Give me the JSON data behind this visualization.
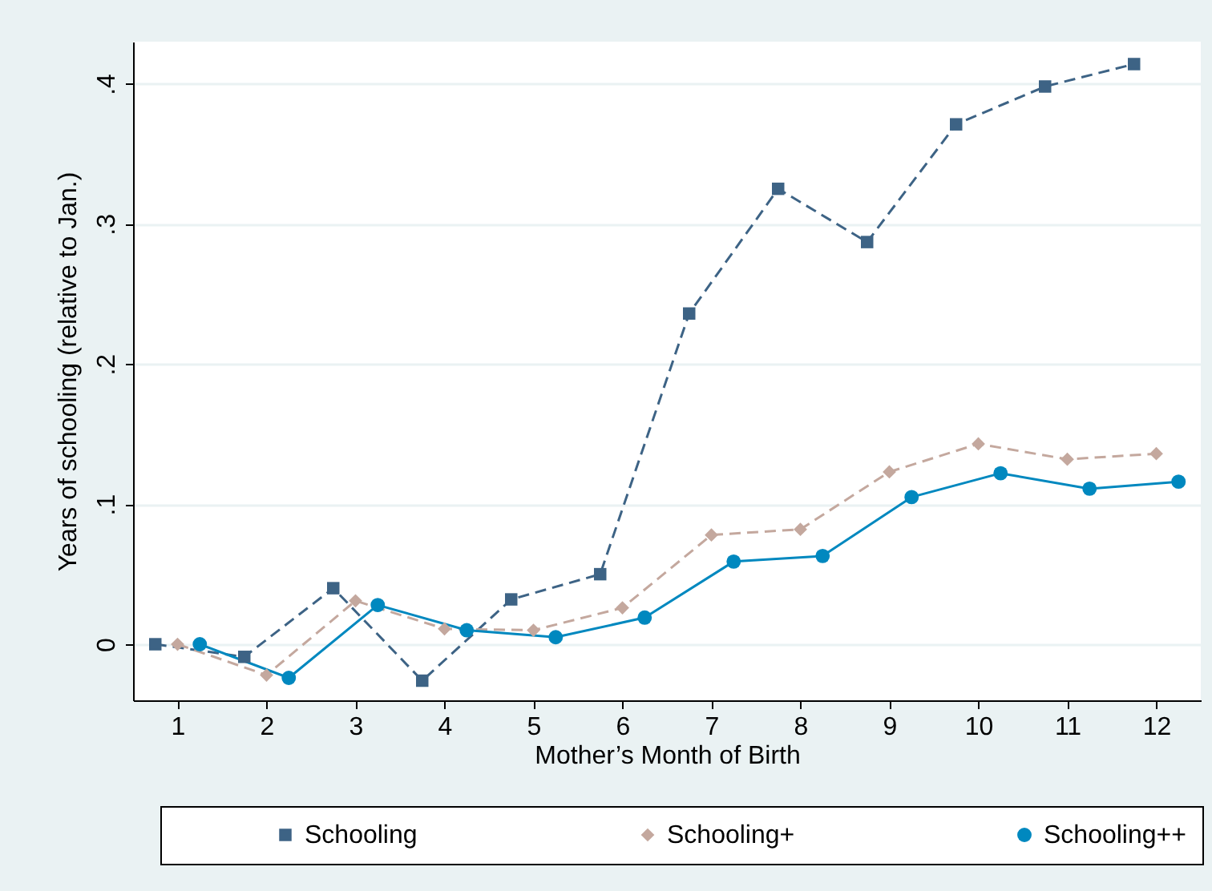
{
  "chart_data": {
    "type": "line",
    "xlabel": "Mother’s Month of Birth",
    "ylabel": "Years of schooling (relative to Jan.)",
    "xlim": [
      0.5,
      12.5
    ],
    "xticks": [
      1,
      2,
      3,
      4,
      5,
      6,
      7,
      8,
      9,
      10,
      11,
      12
    ],
    "ylim": [
      -0.04,
      0.43
    ],
    "yticks": [
      {
        "value": 0,
        "label": "0"
      },
      {
        "value": 0.1,
        "label": ".1"
      },
      {
        "value": 0.2,
        "label": ".2"
      },
      {
        "value": 0.3,
        "label": ".3"
      },
      {
        "value": 0.4,
        "label": ".4"
      }
    ],
    "grid": "y",
    "legend": "bottom",
    "series": [
      {
        "name": "Schooling",
        "color": "#3d6385",
        "marker": "square",
        "line_style": "dashed",
        "x": [
          0.75,
          1.75,
          2.75,
          3.75,
          4.75,
          5.75,
          6.75,
          7.75,
          8.75,
          9.75,
          10.75,
          11.75
        ],
        "values": [
          0,
          -0.009,
          0.04,
          -0.026,
          0.032,
          0.05,
          0.236,
          0.325,
          0.287,
          0.371,
          0.398,
          0.414
        ]
      },
      {
        "name": "Schooling+",
        "color": "#c4a89e",
        "marker": "diamond",
        "line_style": "dashed",
        "x": [
          1,
          2,
          3,
          4,
          5,
          6,
          7,
          8,
          9,
          10,
          11,
          12
        ],
        "values": [
          0,
          -0.022,
          0.031,
          0.011,
          0.01,
          0.026,
          0.078,
          0.082,
          0.123,
          0.143,
          0.132,
          0.136
        ]
      },
      {
        "name": "Schooling++",
        "color": "#0088bf",
        "marker": "circle",
        "line_style": "solid",
        "x": [
          1.25,
          2.25,
          3.25,
          4.25,
          5.25,
          6.25,
          7.25,
          8.25,
          9.25,
          10.25,
          11.25,
          12.25
        ],
        "values": [
          0,
          -0.024,
          0.028,
          0.01,
          0.005,
          0.019,
          0.059,
          0.063,
          0.105,
          0.122,
          0.111,
          0.116
        ]
      }
    ]
  }
}
